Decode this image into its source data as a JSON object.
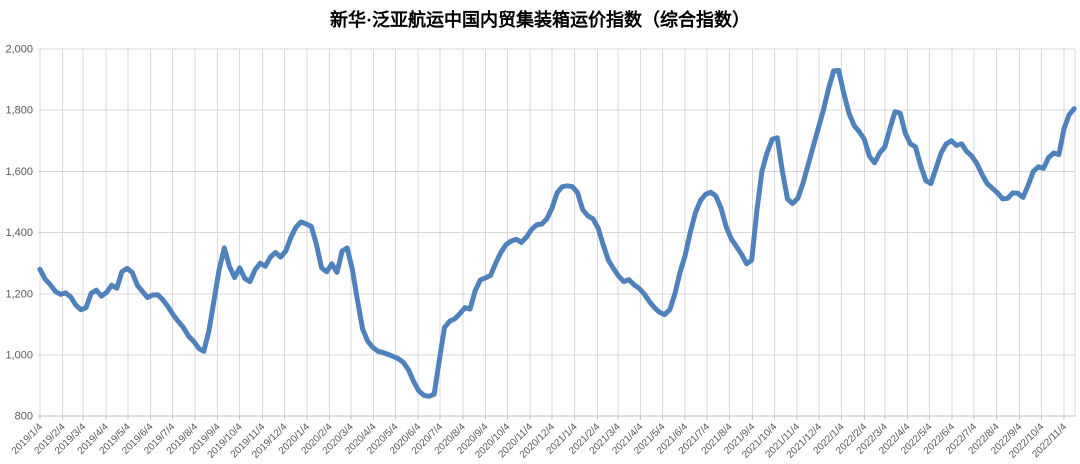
{
  "title": "新华·泛亚航运中国内贸集装箱运价指数（综合指数）",
  "colors": {
    "line": "#4F81BD",
    "gridline": "#D9D9D9",
    "axis_line": "#BFBFBF",
    "tick_label": "#595959",
    "title": "#000000",
    "background": "#FFFFFF"
  },
  "chart_data": {
    "type": "line",
    "title": "新华·泛亚航运中国内贸集装箱运价指数（综合指数）",
    "xlabel": "",
    "ylabel": "",
    "ylim": [
      800,
      2000
    ],
    "y_tick_step": 200,
    "grid": true,
    "legend": "none",
    "y_ticks": [
      "2,000",
      "1,800",
      "1,600",
      "1,400",
      "1,200",
      "1,000",
      "800"
    ],
    "x_ticks": [
      "2019/1/4",
      "2019/2/4",
      "2019/3/4",
      "2019/4/4",
      "2019/5/4",
      "2019/6/4",
      "2019/7/4",
      "2019/8/4",
      "2019/9/4",
      "2019/10/4",
      "2019/11/4",
      "2019/12/4",
      "2020/1/4",
      "2020/2/4",
      "2020/3/4",
      "2020/4/4",
      "2020/5/4",
      "2020/6/4",
      "2020/7/4",
      "2020/8/4",
      "2020/9/4",
      "2020/10/4",
      "2020/11/4",
      "2020/12/4",
      "2021/1/4",
      "2021/2/4",
      "2021/3/4",
      "2021/4/4",
      "2021/5/4",
      "2021/6/4",
      "2021/7/4",
      "2021/8/4",
      "2021/9/4",
      "2021/10/4",
      "2021/11/4",
      "2021/12/4",
      "2022/1/4",
      "2022/2/4",
      "2022/3/4",
      "2022/4/4",
      "2022/5/4",
      "2022/6/4",
      "2022/7/4",
      "2022/8/4",
      "2022/9/4",
      "2022/10/4",
      "2022/11/4"
    ],
    "series": [
      {
        "name": "综合指数",
        "color": "#4F81BD",
        "start_date": "2019/1/4",
        "interval_days": 7,
        "values": [
          1280,
          1248,
          1230,
          1208,
          1198,
          1203,
          1190,
          1163,
          1148,
          1155,
          1202,
          1212,
          1192,
          1205,
          1228,
          1218,
          1272,
          1283,
          1270,
          1228,
          1208,
          1188,
          1196,
          1197,
          1180,
          1158,
          1132,
          1110,
          1090,
          1062,
          1045,
          1022,
          1012,
          1080,
          1180,
          1280,
          1350,
          1290,
          1253,
          1285,
          1250,
          1240,
          1278,
          1300,
          1290,
          1320,
          1335,
          1320,
          1340,
          1385,
          1418,
          1435,
          1428,
          1420,
          1360,
          1285,
          1272,
          1298,
          1270,
          1340,
          1350,
          1280,
          1180,
          1085,
          1045,
          1025,
          1012,
          1008,
          1002,
          995,
          988,
          975,
          951,
          912,
          882,
          868,
          865,
          872,
          985,
          1090,
          1110,
          1118,
          1135,
          1155,
          1150,
          1210,
          1245,
          1252,
          1260,
          1300,
          1335,
          1360,
          1372,
          1378,
          1368,
          1385,
          1410,
          1425,
          1428,
          1445,
          1480,
          1530,
          1550,
          1553,
          1550,
          1530,
          1475,
          1455,
          1445,
          1415,
          1360,
          1310,
          1283,
          1258,
          1240,
          1246,
          1230,
          1218,
          1200,
          1175,
          1155,
          1140,
          1132,
          1148,
          1200,
          1270,
          1325,
          1400,
          1465,
          1505,
          1525,
          1532,
          1520,
          1480,
          1420,
          1380,
          1355,
          1330,
          1298,
          1310,
          1470,
          1600,
          1660,
          1705,
          1710,
          1600,
          1510,
          1495,
          1512,
          1560,
          1620,
          1680,
          1740,
          1800,
          1870,
          1928,
          1930,
          1855,
          1790,
          1750,
          1730,
          1705,
          1650,
          1628,
          1660,
          1680,
          1740,
          1795,
          1790,
          1725,
          1690,
          1680,
          1620,
          1570,
          1560,
          1610,
          1660,
          1690,
          1700,
          1685,
          1690,
          1665,
          1650,
          1625,
          1590,
          1560,
          1545,
          1530,
          1510,
          1512,
          1530,
          1528,
          1515,
          1555,
          1600,
          1615,
          1610,
          1645,
          1660,
          1655,
          1740,
          1785,
          1805
        ]
      }
    ]
  }
}
